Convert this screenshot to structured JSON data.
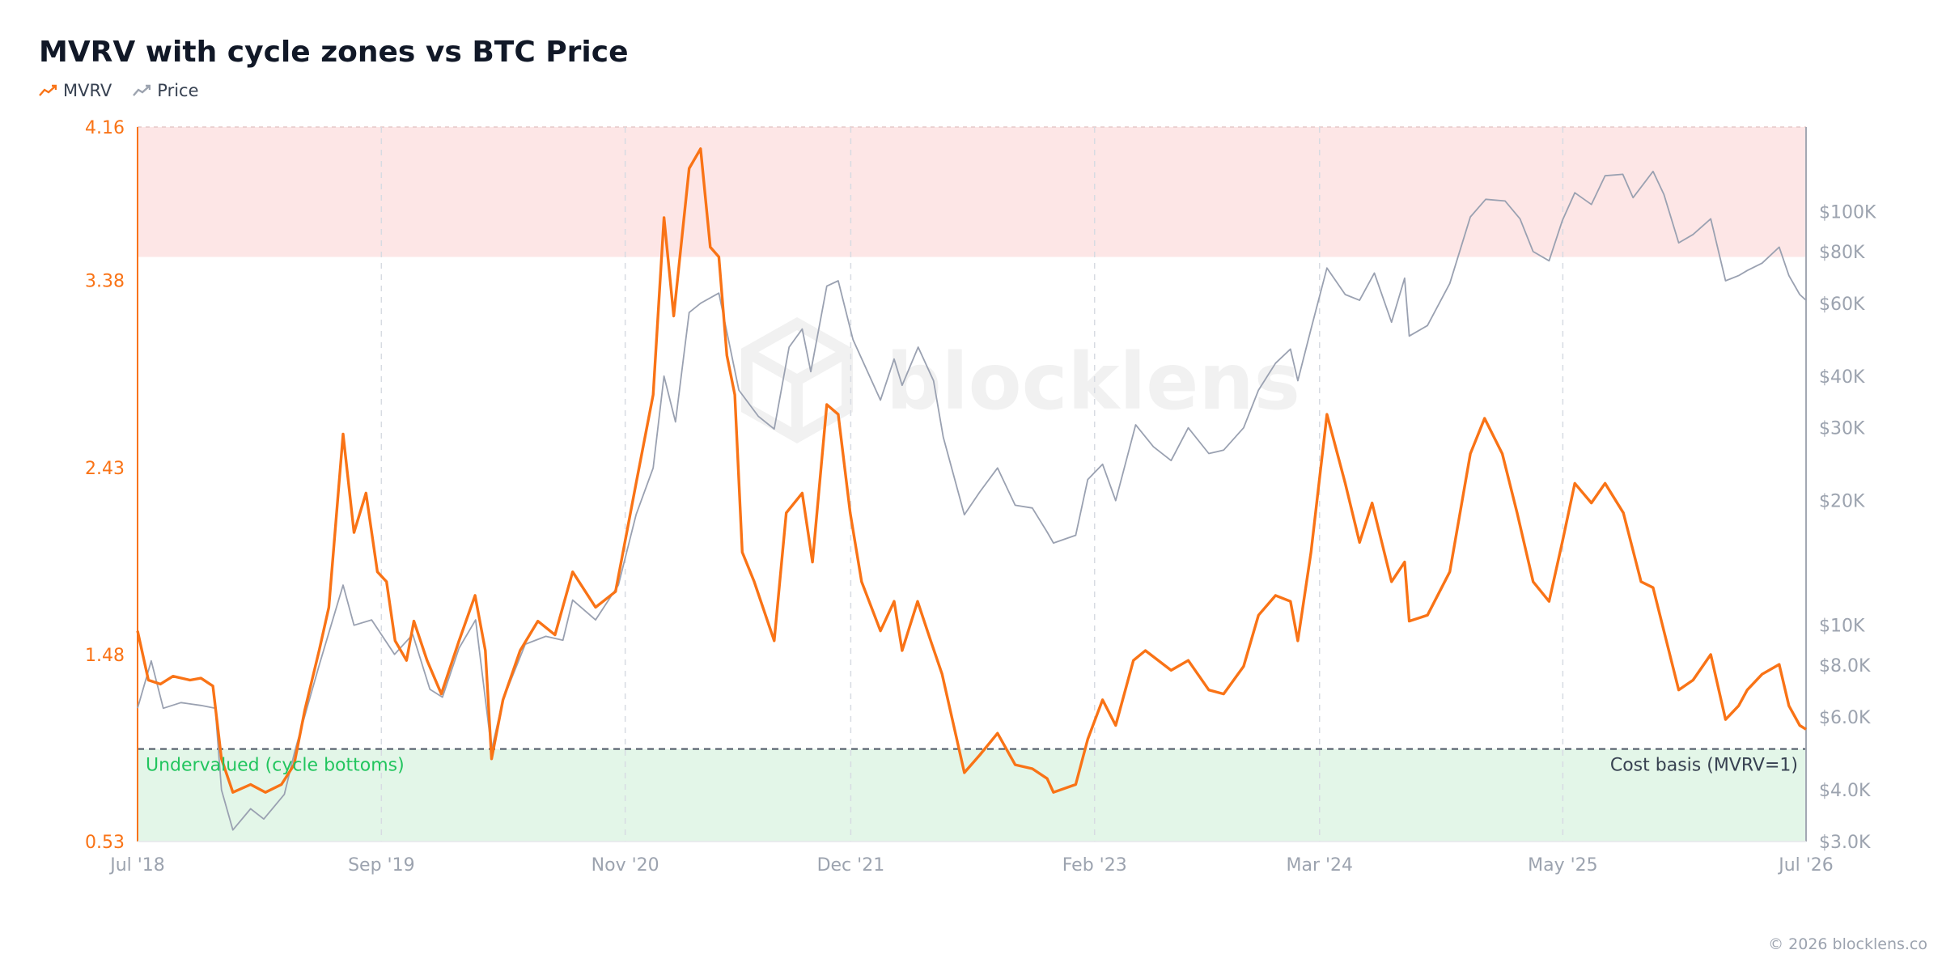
{
  "header": {
    "title": "MVRV with cycle zones vs BTC Price"
  },
  "legend": [
    {
      "label": "MVRV",
      "color": "#f97316",
      "icon": "line-chart-icon"
    },
    {
      "label": "Price",
      "color": "#9ca3af",
      "icon": "line-chart-icon"
    }
  ],
  "footer": {
    "copyright": "© 2026 blocklens.co"
  },
  "watermark": {
    "text": "blocklens",
    "icon": "cube-logo-icon"
  },
  "colors": {
    "mvrv": "#f97316",
    "price": "#9aa1b1",
    "overvalued_zone": "#fde6e6",
    "undervalued_zone": "#e3f6e8",
    "undervalued_label": "#22c55e",
    "left_axis": "#f97316",
    "right_axis": "#9ca3af"
  },
  "chart_data": {
    "type": "line",
    "x_range": [
      "2018-07",
      "2026-07"
    ],
    "x_ticks": [
      {
        "label": "Jul '18",
        "date": "2018-07"
      },
      {
        "label": "Sep '19",
        "date": "2019-09"
      },
      {
        "label": "Nov '20",
        "date": "2020-11"
      },
      {
        "label": "Dec '21",
        "date": "2021-12"
      },
      {
        "label": "Feb '23",
        "date": "2023-02"
      },
      {
        "label": "Mar '24",
        "date": "2024-03"
      },
      {
        "label": "May '25",
        "date": "2025-05"
      },
      {
        "label": "Jul '26",
        "date": "2026-07"
      }
    ],
    "y_left": {
      "min": 0.53,
      "max": 4.16,
      "ticks": [
        "0.53",
        "1.48",
        "2.43",
        "3.38",
        "4.16"
      ]
    },
    "y_right": {
      "scale": "log",
      "min": 3000,
      "max": 160000,
      "ticks": [
        {
          "label": "$3.0K",
          "value": 3000
        },
        {
          "label": "$4.0K",
          "value": 4000
        },
        {
          "label": "$6.0K",
          "value": 6000
        },
        {
          "label": "$8.0K",
          "value": 8000
        },
        {
          "label": "$10K",
          "value": 10000
        },
        {
          "label": "$20K",
          "value": 20000
        },
        {
          "label": "$30K",
          "value": 30000
        },
        {
          "label": "$40K",
          "value": 40000
        },
        {
          "label": "$60K",
          "value": 60000
        },
        {
          "label": "$80K",
          "value": 80000
        },
        {
          "label": "$100K",
          "value": 100000
        }
      ]
    },
    "zones": [
      {
        "label": "",
        "from": 3.5,
        "to": 4.16,
        "kind": "overvalued"
      },
      {
        "label": "Undervalued (cycle bottoms)",
        "from": 0.53,
        "to": 1.0,
        "kind": "undervalued"
      }
    ],
    "reference_line": {
      "label": "Cost basis (MVRV=1)",
      "value": 1.0
    },
    "grid": "vertical dashed",
    "series": [
      {
        "name": "MVRV",
        "axis": "left",
        "points": [
          [
            "2018-07-01",
            1.6
          ],
          [
            "2018-07-20",
            1.35
          ],
          [
            "2018-08-10",
            1.33
          ],
          [
            "2018-09-01",
            1.37
          ],
          [
            "2018-10-01",
            1.35
          ],
          [
            "2018-10-20",
            1.36
          ],
          [
            "2018-11-10",
            1.32
          ],
          [
            "2018-11-25",
            0.95
          ],
          [
            "2018-12-15",
            0.78
          ],
          [
            "2019-01-15",
            0.82
          ],
          [
            "2019-02-10",
            0.78
          ],
          [
            "2019-03-10",
            0.82
          ],
          [
            "2019-04-01",
            0.92
          ],
          [
            "2019-04-20",
            1.2
          ],
          [
            "2019-05-15",
            1.5
          ],
          [
            "2019-06-01",
            1.72
          ],
          [
            "2019-06-26",
            2.6
          ],
          [
            "2019-07-15",
            2.1
          ],
          [
            "2019-08-05",
            2.3
          ],
          [
            "2019-08-25",
            1.9
          ],
          [
            "2019-09-10",
            1.85
          ],
          [
            "2019-09-25",
            1.55
          ],
          [
            "2019-10-15",
            1.45
          ],
          [
            "2019-10-28",
            1.65
          ],
          [
            "2019-11-20",
            1.45
          ],
          [
            "2019-12-15",
            1.28
          ],
          [
            "2020-01-15",
            1.55
          ],
          [
            "2020-02-12",
            1.78
          ],
          [
            "2020-03-01",
            1.5
          ],
          [
            "2020-03-12",
            0.95
          ],
          [
            "2020-04-01",
            1.25
          ],
          [
            "2020-05-01",
            1.5
          ],
          [
            "2020-06-01",
            1.65
          ],
          [
            "2020-07-01",
            1.58
          ],
          [
            "2020-08-01",
            1.9
          ],
          [
            "2020-09-10",
            1.72
          ],
          [
            "2020-10-15",
            1.8
          ],
          [
            "2020-11-20",
            2.35
          ],
          [
            "2020-12-20",
            2.8
          ],
          [
            "2021-01-08",
            3.7
          ],
          [
            "2021-01-25",
            3.2
          ],
          [
            "2021-02-21",
            3.95
          ],
          [
            "2021-03-13",
            4.05
          ],
          [
            "2021-03-30",
            3.55
          ],
          [
            "2021-04-14",
            3.5
          ],
          [
            "2021-04-28",
            3.0
          ],
          [
            "2021-05-12",
            2.8
          ],
          [
            "2021-05-25",
            2.0
          ],
          [
            "2021-06-15",
            1.85
          ],
          [
            "2021-07-20",
            1.55
          ],
          [
            "2021-08-10",
            2.2
          ],
          [
            "2021-09-07",
            2.3
          ],
          [
            "2021-09-25",
            1.95
          ],
          [
            "2021-10-20",
            2.75
          ],
          [
            "2021-11-09",
            2.7
          ],
          [
            "2021-11-30",
            2.2
          ],
          [
            "2021-12-20",
            1.85
          ],
          [
            "2022-01-22",
            1.6
          ],
          [
            "2022-02-15",
            1.75
          ],
          [
            "2022-03-01",
            1.5
          ],
          [
            "2022-03-28",
            1.75
          ],
          [
            "2022-04-20",
            1.55
          ],
          [
            "2022-05-10",
            1.38
          ],
          [
            "2022-06-18",
            0.88
          ],
          [
            "2022-07-15",
            0.97
          ],
          [
            "2022-08-15",
            1.08
          ],
          [
            "2022-09-15",
            0.92
          ],
          [
            "2022-10-15",
            0.9
          ],
          [
            "2022-11-10",
            0.85
          ],
          [
            "2022-11-21",
            0.78
          ],
          [
            "2022-12-30",
            0.82
          ],
          [
            "2023-01-20",
            1.05
          ],
          [
            "2023-02-15",
            1.25
          ],
          [
            "2023-03-10",
            1.12
          ],
          [
            "2023-04-10",
            1.45
          ],
          [
            "2023-05-01",
            1.5
          ],
          [
            "2023-06-15",
            1.4
          ],
          [
            "2023-07-15",
            1.45
          ],
          [
            "2023-08-20",
            1.3
          ],
          [
            "2023-09-15",
            1.28
          ],
          [
            "2023-10-20",
            1.42
          ],
          [
            "2023-11-15",
            1.68
          ],
          [
            "2023-12-15",
            1.78
          ],
          [
            "2024-01-10",
            1.75
          ],
          [
            "2024-01-23",
            1.55
          ],
          [
            "2024-02-15",
            2.0
          ],
          [
            "2024-03-14",
            2.7
          ],
          [
            "2024-04-15",
            2.35
          ],
          [
            "2024-05-10",
            2.05
          ],
          [
            "2024-06-01",
            2.25
          ],
          [
            "2024-07-05",
            1.85
          ],
          [
            "2024-07-28",
            1.95
          ],
          [
            "2024-08-05",
            1.65
          ],
          [
            "2024-09-06",
            1.68
          ],
          [
            "2024-10-15",
            1.9
          ],
          [
            "2024-11-20",
            2.5
          ],
          [
            "2024-12-15",
            2.68
          ],
          [
            "2025-01-15",
            2.5
          ],
          [
            "2025-02-10",
            2.2
          ],
          [
            "2025-03-10",
            1.85
          ],
          [
            "2025-04-07",
            1.75
          ],
          [
            "2025-04-30",
            2.05
          ],
          [
            "2025-05-22",
            2.35
          ],
          [
            "2025-06-20",
            2.25
          ],
          [
            "2025-07-14",
            2.35
          ],
          [
            "2025-08-15",
            2.2
          ],
          [
            "2025-09-15",
            1.85
          ],
          [
            "2025-10-06",
            1.82
          ],
          [
            "2025-10-25",
            1.6
          ],
          [
            "2025-11-20",
            1.3
          ],
          [
            "2025-12-15",
            1.35
          ],
          [
            "2026-01-15",
            1.48
          ],
          [
            "2026-02-10",
            1.15
          ],
          [
            "2026-03-05",
            1.22
          ],
          [
            "2026-03-20",
            1.3
          ],
          [
            "2026-04-15",
            1.38
          ],
          [
            "2026-05-15",
            1.43
          ],
          [
            "2026-06-01",
            1.22
          ],
          [
            "2026-06-20",
            1.12
          ],
          [
            "2026-07-01",
            1.1
          ]
        ]
      },
      {
        "name": "Price",
        "axis": "right",
        "points": [
          [
            "2018-07-01",
            6300
          ],
          [
            "2018-07-25",
            8200
          ],
          [
            "2018-08-15",
            6300
          ],
          [
            "2018-09-15",
            6500
          ],
          [
            "2018-10-20",
            6400
          ],
          [
            "2018-11-14",
            6300
          ],
          [
            "2018-11-25",
            4000
          ],
          [
            "2018-12-15",
            3200
          ],
          [
            "2019-01-15",
            3600
          ],
          [
            "2019-02-07",
            3400
          ],
          [
            "2019-03-15",
            3900
          ],
          [
            "2019-04-03",
            5000
          ],
          [
            "2019-05-15",
            8000
          ],
          [
            "2019-06-26",
            12500
          ],
          [
            "2019-07-15",
            10000
          ],
          [
            "2019-08-15",
            10300
          ],
          [
            "2019-09-24",
            8500
          ],
          [
            "2019-10-26",
            9500
          ],
          [
            "2019-11-25",
            7000
          ],
          [
            "2019-12-17",
            6700
          ],
          [
            "2020-01-15",
            8800
          ],
          [
            "2020-02-13",
            10300
          ],
          [
            "2020-03-12",
            5000
          ],
          [
            "2020-04-01",
            6600
          ],
          [
            "2020-05-10",
            9000
          ],
          [
            "2020-06-15",
            9400
          ],
          [
            "2020-07-15",
            9200
          ],
          [
            "2020-08-01",
            11500
          ],
          [
            "2020-09-10",
            10300
          ],
          [
            "2020-10-20",
            12500
          ],
          [
            "2020-11-20",
            18500
          ],
          [
            "2020-12-20",
            24000
          ],
          [
            "2021-01-08",
            40000
          ],
          [
            "2021-01-28",
            31000
          ],
          [
            "2021-02-21",
            57000
          ],
          [
            "2021-03-13",
            60000
          ],
          [
            "2021-04-14",
            63500
          ],
          [
            "2021-05-19",
            37000
          ],
          [
            "2021-06-22",
            32000
          ],
          [
            "2021-07-20",
            29800
          ],
          [
            "2021-08-15",
            47000
          ],
          [
            "2021-09-07",
            52000
          ],
          [
            "2021-09-22",
            41000
          ],
          [
            "2021-10-20",
            66000
          ],
          [
            "2021-11-09",
            68000
          ],
          [
            "2021-12-05",
            49000
          ],
          [
            "2022-01-22",
            35000
          ],
          [
            "2022-02-15",
            44000
          ],
          [
            "2022-03-01",
            38000
          ],
          [
            "2022-03-29",
            47000
          ],
          [
            "2022-04-25",
            39000
          ],
          [
            "2022-05-12",
            28500
          ],
          [
            "2022-06-18",
            18500
          ],
          [
            "2022-07-15",
            21000
          ],
          [
            "2022-08-15",
            24000
          ],
          [
            "2022-09-15",
            19500
          ],
          [
            "2022-10-15",
            19200
          ],
          [
            "2022-11-10",
            16800
          ],
          [
            "2022-11-21",
            15800
          ],
          [
            "2022-12-30",
            16500
          ],
          [
            "2023-01-20",
            22500
          ],
          [
            "2023-02-15",
            24500
          ],
          [
            "2023-03-10",
            20000
          ],
          [
            "2023-04-14",
            30500
          ],
          [
            "2023-05-15",
            27000
          ],
          [
            "2023-06-15",
            25000
          ],
          [
            "2023-07-15",
            30000
          ],
          [
            "2023-08-20",
            26000
          ],
          [
            "2023-09-15",
            26500
          ],
          [
            "2023-10-20",
            30000
          ],
          [
            "2023-11-15",
            37000
          ],
          [
            "2023-12-15",
            43000
          ],
          [
            "2024-01-10",
            46500
          ],
          [
            "2024-01-23",
            39000
          ],
          [
            "2024-02-15",
            52000
          ],
          [
            "2024-03-14",
            73000
          ],
          [
            "2024-04-15",
            63000
          ],
          [
            "2024-05-10",
            61000
          ],
          [
            "2024-06-05",
            71000
          ],
          [
            "2024-07-05",
            54000
          ],
          [
            "2024-07-28",
            69000
          ],
          [
            "2024-08-05",
            50000
          ],
          [
            "2024-09-06",
            53000
          ],
          [
            "2024-10-15",
            67000
          ],
          [
            "2024-11-20",
            97000
          ],
          [
            "2024-12-17",
            107000
          ],
          [
            "2025-01-20",
            106000
          ],
          [
            "2025-02-15",
            96000
          ],
          [
            "2025-03-10",
            80000
          ],
          [
            "2025-04-07",
            76000
          ],
          [
            "2025-04-30",
            95000
          ],
          [
            "2025-05-22",
            111000
          ],
          [
            "2025-06-20",
            104000
          ],
          [
            "2025-07-14",
            122000
          ],
          [
            "2025-08-14",
            123000
          ],
          [
            "2025-09-01",
            108000
          ],
          [
            "2025-10-06",
            125000
          ],
          [
            "2025-10-25",
            110000
          ],
          [
            "2025-11-20",
            84000
          ],
          [
            "2025-12-15",
            88000
          ],
          [
            "2026-01-15",
            96000
          ],
          [
            "2026-02-10",
            68000
          ],
          [
            "2026-03-05",
            70000
          ],
          [
            "2026-03-20",
            72000
          ],
          [
            "2026-04-15",
            75000
          ],
          [
            "2026-05-15",
            82000
          ],
          [
            "2026-06-01",
            70000
          ],
          [
            "2026-06-20",
            63000
          ],
          [
            "2026-07-01",
            61000
          ]
        ]
      }
    ]
  }
}
